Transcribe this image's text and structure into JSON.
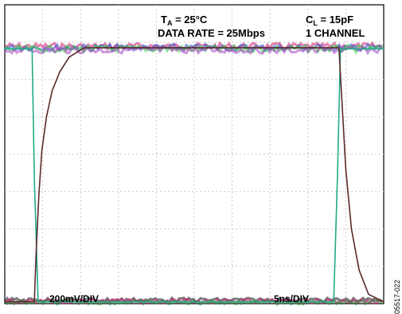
{
  "chart_data": {
    "type": "line",
    "title": "",
    "annotations": {
      "ta_main": "T",
      "ta_sub": "A",
      "ta_rest": " = 25°C",
      "cl_main": "C",
      "cl_sub": "L",
      "cl_rest": " = 15pF",
      "data_rate": "DATA RATE = 25Mbps",
      "channels": "1 CHANNEL",
      "vertical_scale": "200mV/DIV",
      "horizontal_scale": "5ns/DIV"
    },
    "figure_id": "05517-022",
    "grid": true,
    "divisions": {
      "x": 10,
      "y": 8
    },
    "xlim_div": [
      0,
      10
    ],
    "ylim_div": [
      0,
      8
    ],
    "waveforms": [
      {
        "name": "",
        "color": "#22aa88",
        "x_div": [
          0,
          0.72,
          0.78,
          0.88,
          8.68,
          8.78,
          8.86,
          10
        ],
        "y_div": [
          6.82,
          6.82,
          3.4,
          0.05,
          0.05,
          3.4,
          6.82,
          6.82
        ]
      },
      {
        "name": "",
        "color": "#5a2a2a",
        "x_div": [
          0,
          0.78,
          0.83,
          0.9,
          0.98,
          1.1,
          1.25,
          1.45,
          1.7,
          2.1,
          8.82,
          8.9,
          9.0,
          9.15,
          9.35,
          9.6,
          10
        ],
        "y_div": [
          0.05,
          0.05,
          1.4,
          2.9,
          4.1,
          5.0,
          5.7,
          6.2,
          6.6,
          6.85,
          6.85,
          5.4,
          3.6,
          2.0,
          0.9,
          0.25,
          0.05
        ]
      }
    ],
    "colors": {
      "trace_high_band": [
        "#d01870",
        "#3050d0",
        "#30d040",
        "#a040c0"
      ],
      "trace_low_band": [
        "#101010",
        "#d01870",
        "#2a8a3a"
      ],
      "grid": "#c8c8c8"
    }
  }
}
